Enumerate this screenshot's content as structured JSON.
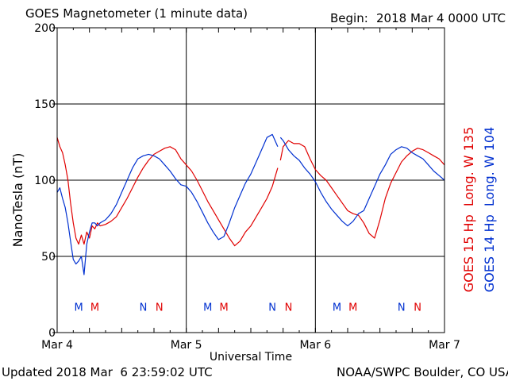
{
  "header": {
    "title": "GOES Magnetometer (1 minute data)",
    "begin_label": "Begin:",
    "begin_value": "2018 Mar 4 0000 UTC"
  },
  "footer": {
    "updated": "Updated 2018 Mar  6 23:59:02 UTC",
    "source": "NOAA/SWPC Boulder, CO USA"
  },
  "colors": {
    "goes15": "#e00000",
    "goes14": "#0030d0",
    "frame": "#000000"
  },
  "chart_data": {
    "type": "line",
    "title": "GOES Magnetometer (1 minute data)",
    "xlabel": "Universal Time",
    "ylabel": "NanoTesla (nT)",
    "ylim": [
      0,
      200
    ],
    "yticks": [
      0,
      50,
      100,
      150,
      200
    ],
    "xlim": [
      0,
      72
    ],
    "x_unit": "hours since 2018 Mar 4 0000 UTC",
    "xticks": [
      {
        "x": 0,
        "label": "Mar 4"
      },
      {
        "x": 24,
        "label": "Mar 5"
      },
      {
        "x": 48,
        "label": "Mar 6"
      },
      {
        "x": 72,
        "label": "Mar 7"
      }
    ],
    "grid": true,
    "series": [
      {
        "name": "GOES 15 Hp  Long. W 135",
        "color": "#e00000",
        "x": [
          0,
          0.5,
          1,
          1.5,
          2,
          2.5,
          3,
          3.5,
          4,
          4.5,
          5,
          5.5,
          6,
          6.5,
          7,
          7.5,
          8,
          9,
          10,
          11,
          12,
          13,
          14,
          15,
          16,
          17,
          18,
          19,
          20,
          21,
          22,
          23,
          24,
          25,
          26,
          27,
          28,
          29,
          30,
          31,
          32,
          33,
          34,
          35,
          36,
          37,
          38,
          39,
          40,
          41,
          null,
          41.5,
          42,
          43,
          44,
          45,
          46,
          47,
          48,
          49,
          50,
          51,
          52,
          53,
          54,
          55,
          56,
          57,
          58,
          59,
          60,
          61,
          62,
          63,
          64,
          65,
          66,
          67,
          68,
          69,
          70,
          71,
          72
        ],
        "y": [
          128,
          122,
          118,
          110,
          100,
          85,
          72,
          62,
          58,
          64,
          58,
          66,
          62,
          70,
          68,
          72,
          70,
          71,
          73,
          76,
          82,
          88,
          95,
          102,
          108,
          113,
          117,
          119,
          121,
          122,
          120,
          114,
          110,
          106,
          100,
          93,
          86,
          80,
          74,
          68,
          62,
          57,
          60,
          66,
          70,
          76,
          82,
          88,
          96,
          108,
          null,
          113,
          122,
          126,
          124,
          124,
          122,
          114,
          107,
          103,
          100,
          95,
          90,
          85,
          80,
          78,
          77,
          72,
          65,
          62,
          74,
          88,
          98,
          105,
          112,
          116,
          119,
          121,
          120,
          118,
          116,
          114,
          110
        ]
      },
      {
        "name": "GOES 14 Hp  Long. W 104",
        "color": "#0030d0",
        "x": [
          0,
          0.5,
          1,
          1.5,
          2,
          2.5,
          3,
          3.5,
          4,
          4.5,
          5,
          5.5,
          6,
          6.5,
          7,
          7.5,
          8,
          9,
          10,
          11,
          12,
          13,
          14,
          15,
          16,
          17,
          18,
          19,
          20,
          21,
          22,
          23,
          24,
          25,
          26,
          27,
          28,
          29,
          30,
          31,
          32,
          33,
          34,
          35,
          36,
          37,
          38,
          39,
          40,
          41,
          null,
          41.5,
          42,
          43,
          44,
          45,
          46,
          47,
          48,
          49,
          50,
          51,
          52,
          53,
          54,
          55,
          56,
          57,
          58,
          59,
          60,
          61,
          62,
          63,
          64,
          65,
          66,
          67,
          68,
          69,
          70,
          71,
          72
        ],
        "y": [
          92,
          95,
          88,
          82,
          72,
          60,
          48,
          45,
          47,
          50,
          38,
          58,
          66,
          72,
          72,
          70,
          72,
          74,
          78,
          84,
          92,
          100,
          108,
          114,
          116,
          117,
          116,
          114,
          110,
          106,
          101,
          97,
          96,
          92,
          86,
          79,
          72,
          66,
          61,
          63,
          72,
          82,
          90,
          98,
          104,
          112,
          120,
          128,
          130,
          122,
          null,
          128,
          126,
          120,
          116,
          113,
          108,
          104,
          99,
          92,
          86,
          81,
          77,
          73,
          70,
          73,
          78,
          80,
          88,
          96,
          104,
          110,
          117,
          120,
          122,
          121,
          118,
          116,
          114,
          110,
          106,
          103,
          100
        ]
      }
    ],
    "annotations": [
      {
        "text": "M",
        "x": 4,
        "series": "GOES 14 Hp  Long. W 104"
      },
      {
        "text": "M",
        "x": 7,
        "series": "GOES 15 Hp  Long. W 135"
      },
      {
        "text": "N",
        "x": 16,
        "series": "GOES 14 Hp  Long. W 104"
      },
      {
        "text": "N",
        "x": 19,
        "series": "GOES 15 Hp  Long. W 135"
      },
      {
        "text": "M",
        "x": 28,
        "series": "GOES 14 Hp  Long. W 104"
      },
      {
        "text": "M",
        "x": 31,
        "series": "GOES 15 Hp  Long. W 135"
      },
      {
        "text": "N",
        "x": 40,
        "series": "GOES 14 Hp  Long. W 104"
      },
      {
        "text": "N",
        "x": 43,
        "series": "GOES 15 Hp  Long. W 135"
      },
      {
        "text": "M",
        "x": 52,
        "series": "GOES 14 Hp  Long. W 104"
      },
      {
        "text": "M",
        "x": 55,
        "series": "GOES 15 Hp  Long. W 135"
      },
      {
        "text": "N",
        "x": 64,
        "series": "GOES 14 Hp  Long. W 104"
      },
      {
        "text": "N",
        "x": 67,
        "series": "GOES 15 Hp  Long. W 135"
      }
    ],
    "annotation_y": 17
  }
}
